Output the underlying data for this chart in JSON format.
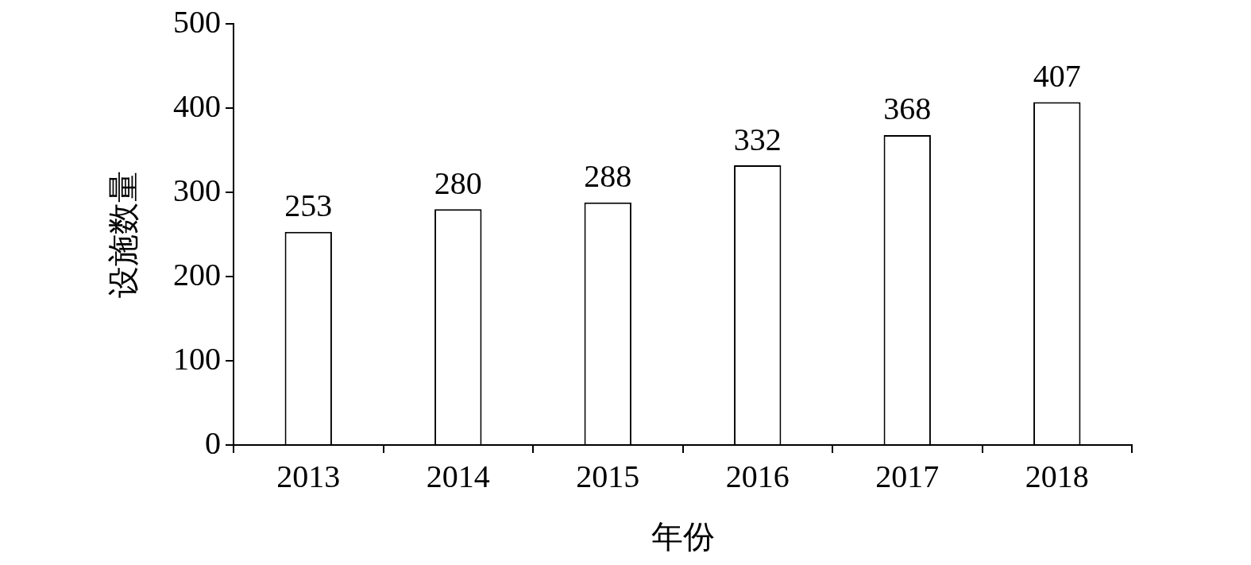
{
  "chart_data": {
    "type": "bar",
    "xlabel": "年份",
    "ylabel": "设施数量",
    "categories": [
      "2013",
      "2014",
      "2015",
      "2016",
      "2017",
      "2018"
    ],
    "values": [
      253,
      280,
      288,
      332,
      368,
      407
    ],
    "color": "#ffffff",
    "ylim": [
      0,
      500
    ],
    "yticks": [
      0,
      100,
      200,
      300,
      400,
      500
    ],
    "data_labels": true,
    "legend": false
  }
}
